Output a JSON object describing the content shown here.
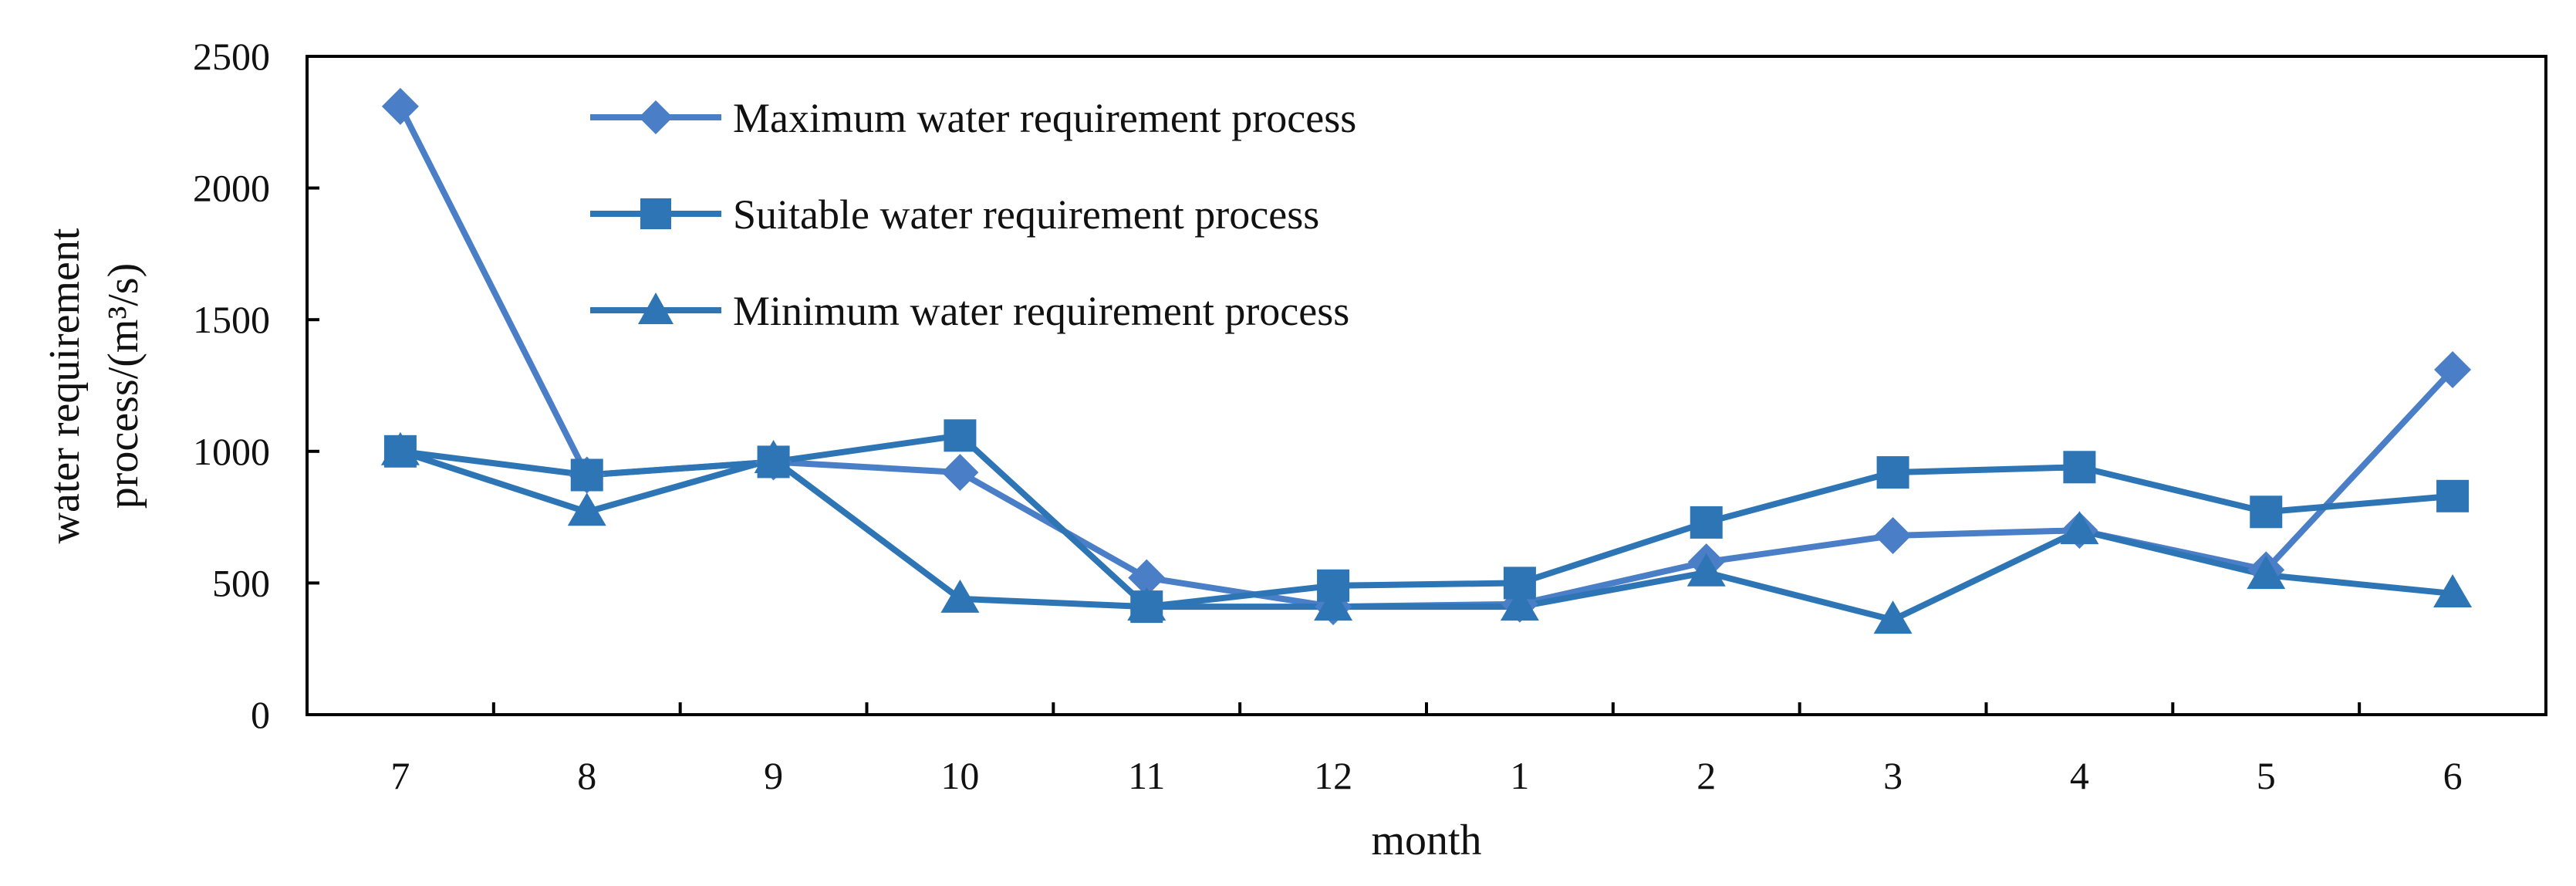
{
  "chart_data": {
    "type": "line",
    "title": "",
    "xlabel": "month",
    "ylabel_lines": [
      "water requirement",
      "process/(m³/s)"
    ],
    "categories": [
      "7",
      "8",
      "9",
      "10",
      "11",
      "12",
      "1",
      "2",
      "3",
      "4",
      "5",
      "6"
    ],
    "ylim": [
      0,
      2500
    ],
    "yticks": [
      0,
      500,
      1000,
      1500,
      2000,
      2500
    ],
    "grid": false,
    "legend_position": "top-left",
    "series": [
      {
        "name": "Maximum water requirement process",
        "marker": "diamond",
        "color": "#4a7ec6",
        "values": [
          2310,
          910,
          960,
          920,
          520,
          410,
          420,
          580,
          680,
          700,
          550,
          1310
        ]
      },
      {
        "name": "Suitable water requirement process",
        "marker": "square",
        "color": "#2e75b6",
        "values": [
          1000,
          910,
          960,
          1060,
          410,
          490,
          500,
          730,
          920,
          940,
          770,
          830
        ]
      },
      {
        "name": "Minimum water requirement process",
        "marker": "triangle",
        "color": "#2e75b6",
        "values": [
          1000,
          770,
          970,
          440,
          410,
          410,
          410,
          540,
          360,
          700,
          530,
          460
        ]
      }
    ]
  }
}
